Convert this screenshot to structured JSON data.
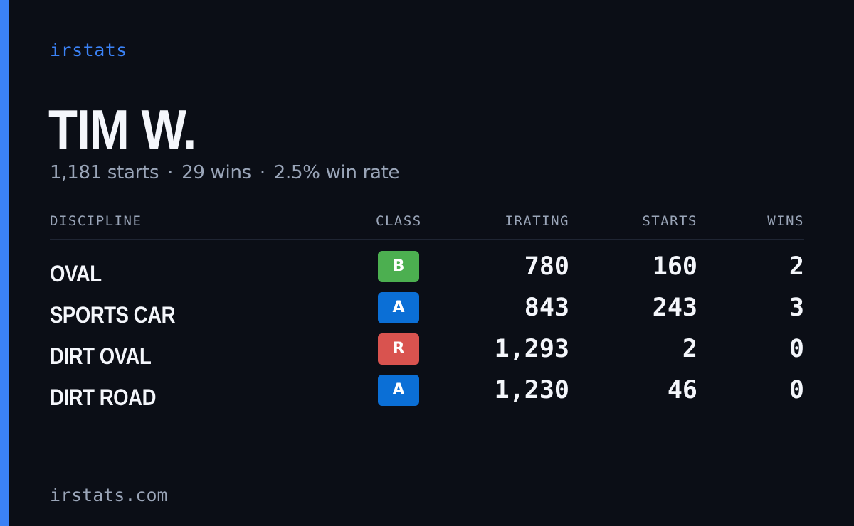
{
  "brand": "irstats",
  "driver": {
    "name": "TIM W.",
    "starts": "1,181 starts",
    "wins": "29 wins",
    "win_rate": "2.5% win rate",
    "separator": "·"
  },
  "table": {
    "headers": {
      "discipline": "DISCIPLINE",
      "class": "CLASS",
      "irating": "IRATING",
      "starts": "STARTS",
      "wins": "WINS"
    },
    "rows": [
      {
        "discipline": "OVAL",
        "class": "B",
        "class_color": "#4caf50",
        "irating": "780",
        "starts": "160",
        "wins": "2"
      },
      {
        "discipline": "SPORTS CAR",
        "class": "A",
        "class_color": "#0b6fd6",
        "irating": "843",
        "starts": "243",
        "wins": "3"
      },
      {
        "discipline": "DIRT OVAL",
        "class": "R",
        "class_color": "#d9534f",
        "irating": "1,293",
        "starts": "2",
        "wins": "0"
      },
      {
        "discipline": "DIRT ROAD",
        "class": "A",
        "class_color": "#0b6fd6",
        "irating": "1,230",
        "starts": "46",
        "wins": "0"
      }
    ]
  },
  "footer": {
    "url": "irstats.com"
  },
  "colors": {
    "background": "#0b0e16",
    "accent": "#3b82f6",
    "muted_text": "#9aa5b8",
    "primary_text": "#f4f6fb"
  }
}
